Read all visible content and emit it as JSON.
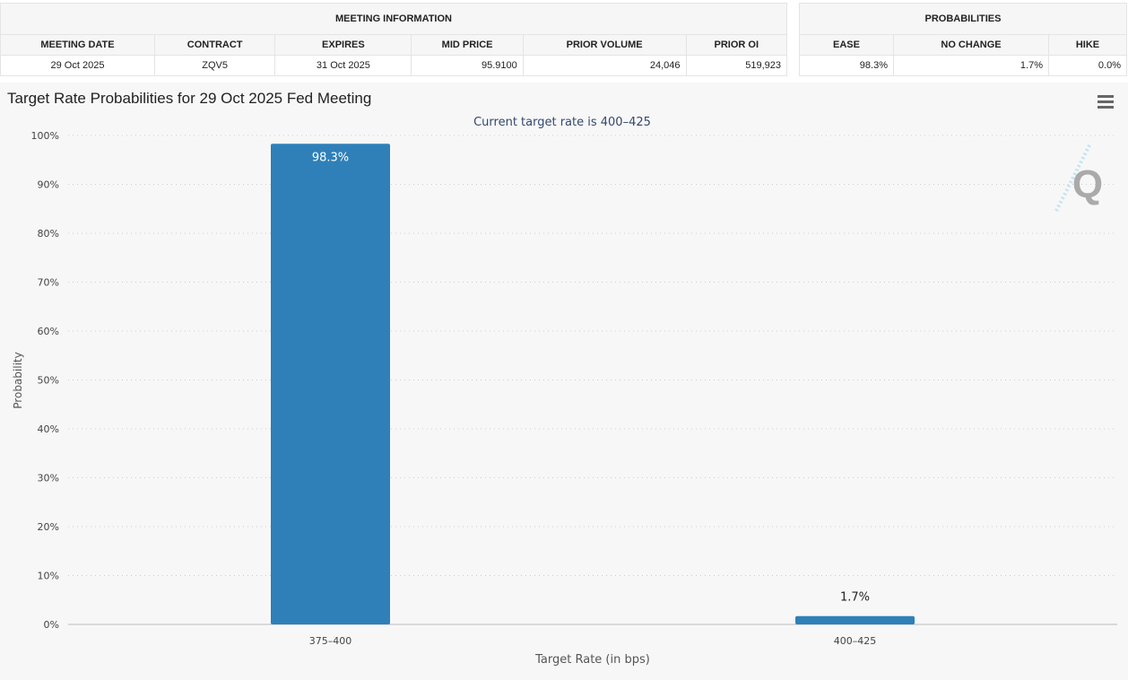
{
  "meeting_table": {
    "group_header": "MEETING INFORMATION",
    "columns": [
      "MEETING DATE",
      "CONTRACT",
      "EXPIRES",
      "MID PRICE",
      "PRIOR VOLUME",
      "PRIOR OI"
    ],
    "row": [
      "29 Oct 2025",
      "ZQV5",
      "31 Oct 2025",
      "95.9100",
      "24,046",
      "519,923"
    ]
  },
  "prob_table": {
    "group_header": "PROBABILITIES",
    "columns": [
      "EASE",
      "NO CHANGE",
      "HIKE"
    ],
    "row": [
      "98.3%",
      "1.7%",
      "0.0%"
    ]
  },
  "chart_data": {
    "type": "bar",
    "title": "Target Rate Probabilities for 29 Oct 2025 Fed Meeting",
    "subtitle": "Current target rate is 400–425",
    "categories": [
      "375–400",
      "400–425"
    ],
    "values": [
      98.3,
      1.7
    ],
    "data_labels": [
      "98.3%",
      "1.7%"
    ],
    "xlabel": "Target Rate (in bps)",
    "ylabel": "Probability",
    "ylim": [
      0,
      100
    ],
    "yticks": [
      "0%",
      "10%",
      "20%",
      "30%",
      "40%",
      "50%",
      "60%",
      "70%",
      "80%",
      "90%",
      "100%"
    ],
    "grid": true,
    "bar_color": "#2f80b9",
    "watermark": "Q"
  },
  "menu_icon": "hamburger-icon"
}
